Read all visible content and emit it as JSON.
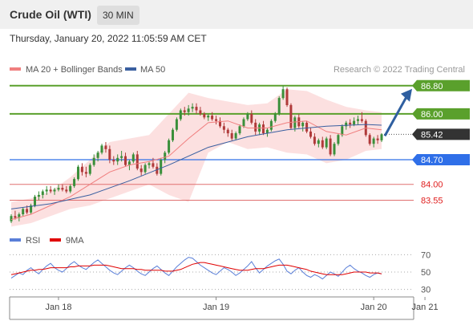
{
  "header": {
    "instrument": "Crude Oil (WTI)",
    "timeframe": "30 MIN",
    "timestamp": "Thursday, January 20, 2022 11:05:59 AM CET"
  },
  "legend": {
    "ma20": "MA 20 + Bollinger Bands",
    "ma50": "MA 50",
    "credit": "Research © 2022 Trading Central"
  },
  "colors": {
    "up": "#3a8f3a",
    "down": "#b03a3a",
    "ma20": "#f07f7f",
    "ma50": "#3a5fa0",
    "bands": "#fbd6d6",
    "green_level": "#5aa02c",
    "blue_level": "#2f6fe8",
    "red_level": "#e07070",
    "price_tag": "#333333",
    "rsi": "#5a7fd8",
    "rsi_ma": "#e00000"
  },
  "chart_data": [
    {
      "type": "candlestick",
      "x_tick_labels": [
        "Jan 18",
        "Jan 19",
        "Jan 20",
        "Jan 21"
      ],
      "ylim": [
        82.9,
        87.0
      ],
      "current_price": 85.42,
      "levels": [
        {
          "value": 86.8,
          "label": "86.80",
          "style": "green-tag"
        },
        {
          "value": 86.0,
          "label": "86.00",
          "style": "green-tag"
        },
        {
          "value": 85.42,
          "label": "85.42",
          "style": "price-tag"
        },
        {
          "value": 84.7,
          "label": "84.70",
          "style": "blue-tag"
        },
        {
          "value": 84.0,
          "label": "84.00",
          "style": "red-text"
        },
        {
          "value": 83.55,
          "label": "83.55",
          "style": "red-text"
        }
      ],
      "forecast_arrow": {
        "from": 85.42,
        "to": 86.8
      },
      "candles_ohlc": [
        [
          82.95,
          83.15,
          82.9,
          83.1
        ],
        [
          83.1,
          83.25,
          83.0,
          83.05
        ],
        [
          83.05,
          83.2,
          82.95,
          83.15
        ],
        [
          83.15,
          83.35,
          83.1,
          83.3
        ],
        [
          83.3,
          83.4,
          83.15,
          83.2
        ],
        [
          83.2,
          83.45,
          83.15,
          83.4
        ],
        [
          83.4,
          83.7,
          83.35,
          83.65
        ],
        [
          83.65,
          83.8,
          83.55,
          83.7
        ],
        [
          83.7,
          83.85,
          83.6,
          83.8
        ],
        [
          83.8,
          83.95,
          83.7,
          83.85
        ],
        [
          83.85,
          83.95,
          83.75,
          83.8
        ],
        [
          83.8,
          83.9,
          83.7,
          83.85
        ],
        [
          83.85,
          84.0,
          83.8,
          83.9
        ],
        [
          83.9,
          84.0,
          83.8,
          83.85
        ],
        [
          83.85,
          83.95,
          83.75,
          83.8
        ],
        [
          83.8,
          84.0,
          83.75,
          83.95
        ],
        [
          83.95,
          84.2,
          83.9,
          84.15
        ],
        [
          84.15,
          84.55,
          84.1,
          84.5
        ],
        [
          84.5,
          84.6,
          84.25,
          84.35
        ],
        [
          84.35,
          84.5,
          84.2,
          84.3
        ],
        [
          84.3,
          84.6,
          84.25,
          84.55
        ],
        [
          84.55,
          84.85,
          84.5,
          84.75
        ],
        [
          84.75,
          84.95,
          84.65,
          84.9
        ],
        [
          84.9,
          85.15,
          84.85,
          85.1
        ],
        [
          85.1,
          85.2,
          84.9,
          85.0
        ],
        [
          85.0,
          85.1,
          84.6,
          84.7
        ],
        [
          84.7,
          84.8,
          84.55,
          84.65
        ],
        [
          84.65,
          84.85,
          84.55,
          84.75
        ],
        [
          84.75,
          84.95,
          84.65,
          84.8
        ],
        [
          84.8,
          84.9,
          84.5,
          84.55
        ],
        [
          84.55,
          84.7,
          84.4,
          84.65
        ],
        [
          84.65,
          84.9,
          84.6,
          84.85
        ],
        [
          84.85,
          84.95,
          84.4,
          84.45
        ],
        [
          84.45,
          84.55,
          84.25,
          84.35
        ],
        [
          84.35,
          84.6,
          84.3,
          84.55
        ],
        [
          84.55,
          84.65,
          84.45,
          84.6
        ],
        [
          84.6,
          84.75,
          84.45,
          84.5
        ],
        [
          84.5,
          84.6,
          84.25,
          84.3
        ],
        [
          84.3,
          84.75,
          84.25,
          84.7
        ],
        [
          84.7,
          84.95,
          84.6,
          84.9
        ],
        [
          84.9,
          85.3,
          84.85,
          85.25
        ],
        [
          85.25,
          85.6,
          85.2,
          85.55
        ],
        [
          85.55,
          85.9,
          85.5,
          85.85
        ],
        [
          85.85,
          86.15,
          85.8,
          86.1
        ],
        [
          86.1,
          86.2,
          85.95,
          86.05
        ],
        [
          86.05,
          86.25,
          85.95,
          86.15
        ],
        [
          86.15,
          86.3,
          86.05,
          86.2
        ],
        [
          86.2,
          86.3,
          86.0,
          86.1
        ],
        [
          86.1,
          86.2,
          85.95,
          86.0
        ],
        [
          86.0,
          86.05,
          85.85,
          85.9
        ],
        [
          85.9,
          86.0,
          85.8,
          85.95
        ],
        [
          85.95,
          86.05,
          85.8,
          85.85
        ],
        [
          85.85,
          85.95,
          85.7,
          85.8
        ],
        [
          85.8,
          85.9,
          85.6,
          85.65
        ],
        [
          85.65,
          85.75,
          85.45,
          85.55
        ],
        [
          85.55,
          85.6,
          85.35,
          85.45
        ],
        [
          85.45,
          85.55,
          85.25,
          85.3
        ],
        [
          85.3,
          85.5,
          85.25,
          85.45
        ],
        [
          85.45,
          85.7,
          85.4,
          85.65
        ],
        [
          85.65,
          85.9,
          85.6,
          85.85
        ],
        [
          85.85,
          86.05,
          85.8,
          86.0
        ],
        [
          86.0,
          86.1,
          85.7,
          85.75
        ],
        [
          85.75,
          85.85,
          85.4,
          85.5
        ],
        [
          85.5,
          85.75,
          85.4,
          85.7
        ],
        [
          85.7,
          85.8,
          85.4,
          85.45
        ],
        [
          85.45,
          85.6,
          85.35,
          85.55
        ],
        [
          85.55,
          85.85,
          85.5,
          85.8
        ],
        [
          85.8,
          86.05,
          85.75,
          86.0
        ],
        [
          86.0,
          86.5,
          85.95,
          86.45
        ],
        [
          86.45,
          86.8,
          86.4,
          86.7
        ],
        [
          86.7,
          86.75,
          86.2,
          86.25
        ],
        [
          86.25,
          86.3,
          85.55,
          85.6
        ],
        [
          85.6,
          85.95,
          85.5,
          85.9
        ],
        [
          85.9,
          86.0,
          85.6,
          85.65
        ],
        [
          85.65,
          85.8,
          85.5,
          85.75
        ],
        [
          85.75,
          85.8,
          85.45,
          85.5
        ],
        [
          85.5,
          85.6,
          85.3,
          85.35
        ],
        [
          85.35,
          85.45,
          85.1,
          85.15
        ],
        [
          85.15,
          85.3,
          85.05,
          85.25
        ],
        [
          85.25,
          85.35,
          85.0,
          85.05
        ],
        [
          85.05,
          85.35,
          85.0,
          85.3
        ],
        [
          85.3,
          85.4,
          84.8,
          84.85
        ],
        [
          84.85,
          85.2,
          84.8,
          85.15
        ],
        [
          85.15,
          85.45,
          85.1,
          85.4
        ],
        [
          85.4,
          85.7,
          85.35,
          85.65
        ],
        [
          85.65,
          85.8,
          85.55,
          85.75
        ],
        [
          85.75,
          85.85,
          85.6,
          85.7
        ],
        [
          85.7,
          85.9,
          85.65,
          85.8
        ],
        [
          85.8,
          85.95,
          85.7,
          85.85
        ],
        [
          85.85,
          86.05,
          85.75,
          85.8
        ],
        [
          85.8,
          85.85,
          85.35,
          85.4
        ],
        [
          85.4,
          85.45,
          85.1,
          85.15
        ],
        [
          85.15,
          85.35,
          85.05,
          85.3
        ],
        [
          85.3,
          85.4,
          85.15,
          85.25
        ],
        [
          85.25,
          85.45,
          85.2,
          85.42
        ]
      ],
      "ma20": [
        [
          0,
          83.0
        ],
        [
          5,
          83.15
        ],
        [
          10,
          83.4
        ],
        [
          15,
          83.65
        ],
        [
          20,
          84.0
        ],
        [
          25,
          84.35
        ],
        [
          30,
          84.55
        ],
        [
          35,
          84.65
        ],
        [
          40,
          84.8
        ],
        [
          45,
          85.3
        ],
        [
          50,
          85.75
        ],
        [
          55,
          85.8
        ],
        [
          60,
          85.6
        ],
        [
          65,
          85.6
        ],
        [
          70,
          85.75
        ],
        [
          75,
          85.8
        ],
        [
          80,
          85.5
        ],
        [
          85,
          85.4
        ],
        [
          90,
          85.6
        ],
        [
          94,
          85.55
        ]
      ],
      "ma50": [
        [
          0,
          83.3
        ],
        [
          10,
          83.45
        ],
        [
          20,
          83.7
        ],
        [
          30,
          84.1
        ],
        [
          40,
          84.55
        ],
        [
          50,
          85.05
        ],
        [
          60,
          85.35
        ],
        [
          70,
          85.55
        ],
        [
          80,
          85.65
        ],
        [
          90,
          85.7
        ],
        [
          94,
          85.68
        ]
      ],
      "bands": {
        "upper": [
          [
            0,
            83.5
          ],
          [
            5,
            83.6
          ],
          [
            10,
            83.8
          ],
          [
            15,
            84.2
          ],
          [
            20,
            84.7
          ],
          [
            25,
            85.2
          ],
          [
            30,
            85.3
          ],
          [
            35,
            85.4
          ],
          [
            40,
            86.0
          ],
          [
            45,
            86.6
          ],
          [
            50,
            86.45
          ],
          [
            55,
            86.35
          ],
          [
            60,
            86.25
          ],
          [
            65,
            86.3
          ],
          [
            70,
            86.7
          ],
          [
            75,
            86.65
          ],
          [
            80,
            86.4
          ],
          [
            85,
            86.2
          ],
          [
            90,
            86.1
          ],
          [
            94,
            86.05
          ]
        ],
        "lower": [
          [
            0,
            82.8
          ],
          [
            5,
            82.9
          ],
          [
            10,
            83.1
          ],
          [
            15,
            83.3
          ],
          [
            20,
            83.4
          ],
          [
            25,
            83.6
          ],
          [
            30,
            83.8
          ],
          [
            35,
            84.0
          ],
          [
            40,
            83.7
          ],
          [
            45,
            83.5
          ],
          [
            50,
            84.9
          ],
          [
            55,
            85.2
          ],
          [
            60,
            85.0
          ],
          [
            65,
            85.05
          ],
          [
            70,
            84.9
          ],
          [
            75,
            84.85
          ],
          [
            80,
            84.6
          ],
          [
            85,
            84.7
          ],
          [
            90,
            84.95
          ],
          [
            94,
            85.0
          ]
        ]
      }
    },
    {
      "type": "line",
      "legend": [
        "RSI",
        "9MA"
      ],
      "ylim": [
        25,
        75
      ],
      "y_ticks": [
        70,
        50,
        30
      ],
      "rsi": [
        43,
        46,
        49,
        47,
        52,
        55,
        51,
        48,
        53,
        57,
        60,
        55,
        52,
        50,
        54,
        59,
        62,
        58,
        55,
        53,
        57,
        61,
        64,
        60,
        56,
        52,
        49,
        47,
        51,
        55,
        58,
        55,
        51,
        48,
        46,
        50,
        54,
        57,
        53,
        49,
        46,
        51,
        56,
        60,
        64,
        67,
        66,
        62,
        58,
        55,
        52,
        49,
        47,
        51,
        55,
        53,
        50,
        46,
        49,
        53,
        57,
        62,
        55,
        49,
        53,
        57,
        60,
        63,
        65,
        59,
        51,
        48,
        52,
        55,
        50,
        46,
        44,
        47,
        45,
        42,
        46,
        50,
        48,
        45,
        50,
        55,
        58,
        54,
        51,
        49,
        46,
        44,
        47,
        49,
        48
      ],
      "rsi_ma": [
        47,
        48,
        49,
        50,
        51,
        52,
        52,
        53,
        53,
        54,
        55,
        55,
        55,
        55,
        55,
        56,
        56,
        57,
        57,
        57,
        57,
        58,
        58,
        58,
        58,
        57,
        56,
        55,
        54,
        54,
        54,
        54,
        53,
        53,
        52,
        52,
        52,
        52,
        52,
        51,
        51,
        51,
        52,
        53,
        55,
        57,
        59,
        60,
        61,
        61,
        60,
        59,
        58,
        57,
        56,
        55,
        54,
        53,
        52,
        52,
        52,
        53,
        54,
        54,
        54,
        55,
        56,
        57,
        58,
        58,
        58,
        57,
        56,
        55,
        54,
        53,
        51,
        50,
        49,
        48,
        47,
        47,
        47,
        47,
        47,
        48,
        49,
        50,
        50,
        50,
        50,
        49,
        49,
        49,
        48
      ]
    }
  ]
}
